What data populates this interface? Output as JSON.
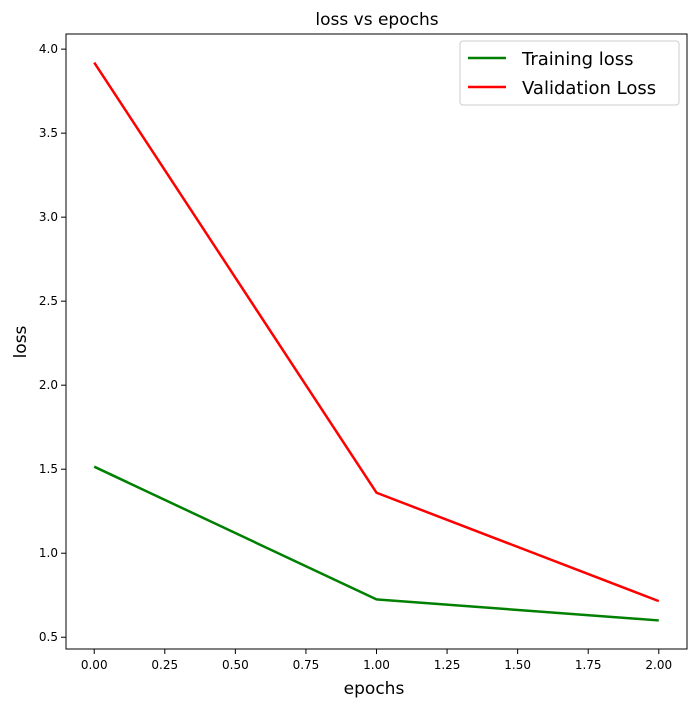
{
  "chart_data": {
    "type": "line",
    "title": "loss vs epochs",
    "xlabel": "epochs",
    "ylabel": "loss",
    "x": [
      0,
      1,
      2
    ],
    "series": [
      {
        "name": "Training loss",
        "values": [
          1.515,
          0.725,
          0.6
        ],
        "color": "#008000"
      },
      {
        "name": "Validation Loss",
        "values": [
          3.92,
          1.36,
          0.715
        ],
        "color": "#ff0000"
      }
    ],
    "xlim": [
      -0.1,
      2.1
    ],
    "ylim": [
      0.43,
      4.09
    ],
    "xticks": [
      0.0,
      0.25,
      0.5,
      0.75,
      1.0,
      1.25,
      1.5,
      1.75,
      2.0
    ],
    "xtick_labels": [
      "0.00",
      "0.25",
      "0.50",
      "0.75",
      "1.00",
      "1.25",
      "1.50",
      "1.75",
      "2.00"
    ],
    "yticks": [
      0.5,
      1.0,
      1.5,
      2.0,
      2.5,
      3.0,
      3.5,
      4.0
    ],
    "ytick_labels": [
      "0.5",
      "1.0",
      "1.5",
      "2.0",
      "2.5",
      "3.0",
      "3.5",
      "4.0"
    ],
    "grid": false,
    "legend_position": "top-right"
  }
}
